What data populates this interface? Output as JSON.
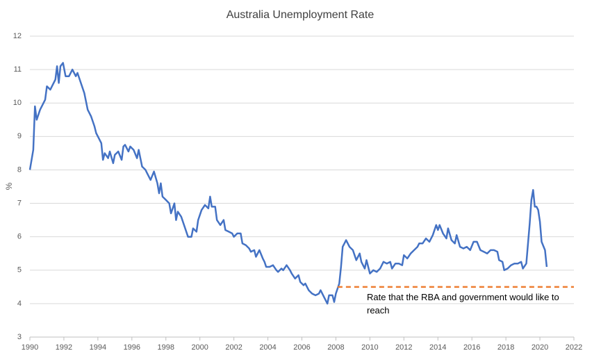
{
  "chart_data": {
    "type": "line",
    "title": "Australia Unemployment Rate",
    "y_label": "%",
    "xlim": [
      1990,
      2022
    ],
    "xticks": [
      1990,
      1992,
      1994,
      1996,
      1998,
      2000,
      2002,
      2004,
      2006,
      2008,
      2010,
      2012,
      2014,
      2016,
      2018,
      2020,
      2022
    ],
    "ylim": [
      3,
      12
    ],
    "yticks": [
      3,
      4,
      5,
      6,
      7,
      8,
      9,
      10,
      11,
      12
    ],
    "grid": true,
    "series": [
      {
        "name": "Unemployment rate",
        "color": "#4472c4",
        "x": [
          1990.0,
          1990.2,
          1990.3,
          1990.4,
          1990.6,
          1990.8,
          1990.9,
          1991.0,
          1991.2,
          1991.3,
          1991.5,
          1991.6,
          1991.7,
          1991.8,
          1991.95,
          1992.1,
          1992.3,
          1992.5,
          1992.7,
          1992.8,
          1993.0,
          1993.2,
          1993.4,
          1993.6,
          1993.8,
          1993.9,
          1994.1,
          1994.2,
          1994.3,
          1994.4,
          1994.6,
          1994.7,
          1994.9,
          1995.0,
          1995.2,
          1995.4,
          1995.5,
          1995.6,
          1995.8,
          1995.9,
          1996.1,
          1996.3,
          1996.4,
          1996.6,
          1996.8,
          1996.9,
          1997.1,
          1997.3,
          1997.5,
          1997.6,
          1997.7,
          1997.8,
          1998.0,
          1998.2,
          1998.3,
          1998.5,
          1998.6,
          1998.7,
          1998.9,
          1999.1,
          1999.3,
          1999.5,
          1999.6,
          1999.8,
          1999.9,
          2000.1,
          2000.3,
          2000.5,
          2000.6,
          2000.7,
          2000.9,
          2001.0,
          2001.2,
          2001.4,
          2001.5,
          2001.7,
          2001.9,
          2002.0,
          2002.2,
          2002.4,
          2002.5,
          2002.7,
          2002.9,
          2003.0,
          2003.2,
          2003.3,
          2003.5,
          2003.7,
          2003.8,
          2003.9,
          2004.1,
          2004.3,
          2004.5,
          2004.6,
          2004.8,
          2004.9,
          2005.1,
          2005.3,
          2005.4,
          2005.6,
          2005.8,
          2005.9,
          2006.1,
          2006.2,
          2006.4,
          2006.6,
          2006.8,
          2007.0,
          2007.1,
          2007.3,
          2007.5,
          2007.6,
          2007.8,
          2007.9,
          2008.0,
          2008.2,
          2008.3,
          2008.4,
          2008.5,
          2008.6,
          2008.8,
          2009.0,
          2009.2,
          2009.4,
          2009.5,
          2009.7,
          2009.8,
          2010.0,
          2010.2,
          2010.4,
          2010.6,
          2010.8,
          2011.0,
          2011.2,
          2011.3,
          2011.5,
          2011.7,
          2011.9,
          2012.0,
          2012.2,
          2012.4,
          2012.6,
          2012.8,
          2012.9,
          2013.1,
          2013.3,
          2013.5,
          2013.7,
          2013.9,
          2014.0,
          2014.1,
          2014.3,
          2014.5,
          2014.6,
          2014.8,
          2015.0,
          2015.1,
          2015.3,
          2015.5,
          2015.7,
          2015.9,
          2016.1,
          2016.3,
          2016.5,
          2016.7,
          2016.9,
          2017.1,
          2017.3,
          2017.5,
          2017.6,
          2017.8,
          2017.9,
          2018.1,
          2018.3,
          2018.5,
          2018.7,
          2018.9,
          2019.0,
          2019.2,
          2019.4,
          2019.5,
          2019.6,
          2019.7,
          2019.8,
          2019.9,
          2020.0,
          2020.1,
          2020.3,
          2020.4
        ],
        "values": [
          8.0,
          8.6,
          9.9,
          9.5,
          9.8,
          10.0,
          10.1,
          10.5,
          10.4,
          10.5,
          10.7,
          11.1,
          10.6,
          11.1,
          11.2,
          10.8,
          10.8,
          11.0,
          10.8,
          10.9,
          10.6,
          10.3,
          9.8,
          9.6,
          9.3,
          9.1,
          8.9,
          8.8,
          8.3,
          8.5,
          8.35,
          8.55,
          8.2,
          8.45,
          8.55,
          8.3,
          8.7,
          8.75,
          8.55,
          8.7,
          8.6,
          8.35,
          8.6,
          8.1,
          8.0,
          7.9,
          7.7,
          7.95,
          7.6,
          7.3,
          7.6,
          7.2,
          7.1,
          7.0,
          6.7,
          7.0,
          6.5,
          6.75,
          6.6,
          6.3,
          6.0,
          6.0,
          6.25,
          6.15,
          6.5,
          6.8,
          6.95,
          6.85,
          7.2,
          6.9,
          6.9,
          6.5,
          6.35,
          6.5,
          6.2,
          6.15,
          6.1,
          6.0,
          6.1,
          6.1,
          5.8,
          5.75,
          5.65,
          5.55,
          5.6,
          5.4,
          5.6,
          5.35,
          5.25,
          5.1,
          5.1,
          5.15,
          5.0,
          4.95,
          5.05,
          5.0,
          5.15,
          5.0,
          4.9,
          4.75,
          4.85,
          4.65,
          4.55,
          4.6,
          4.4,
          4.3,
          4.25,
          4.3,
          4.4,
          4.2,
          4.0,
          4.25,
          4.25,
          4.05,
          4.3,
          4.6,
          5.1,
          5.7,
          5.8,
          5.9,
          5.7,
          5.6,
          5.3,
          5.5,
          5.25,
          5.05,
          5.3,
          4.9,
          5.0,
          4.95,
          5.05,
          5.25,
          5.2,
          5.25,
          5.05,
          5.2,
          5.2,
          5.15,
          5.45,
          5.35,
          5.5,
          5.6,
          5.7,
          5.8,
          5.8,
          5.95,
          5.85,
          6.05,
          6.35,
          6.2,
          6.35,
          6.1,
          5.95,
          6.25,
          5.9,
          5.8,
          6.05,
          5.7,
          5.65,
          5.7,
          5.6,
          5.85,
          5.85,
          5.6,
          5.55,
          5.5,
          5.6,
          5.6,
          5.55,
          5.3,
          5.25,
          5.0,
          5.05,
          5.15,
          5.2,
          5.2,
          5.25,
          5.05,
          5.2,
          6.4,
          7.1,
          7.4,
          6.9,
          6.9,
          6.8,
          6.45,
          5.85,
          5.6,
          5.1
        ]
      }
    ],
    "reference_line": {
      "value": 4.5,
      "x": [
        2008.1,
        2022
      ],
      "color": "#ed7d31",
      "label": "Rate that the RBA and government would like to reach"
    }
  }
}
